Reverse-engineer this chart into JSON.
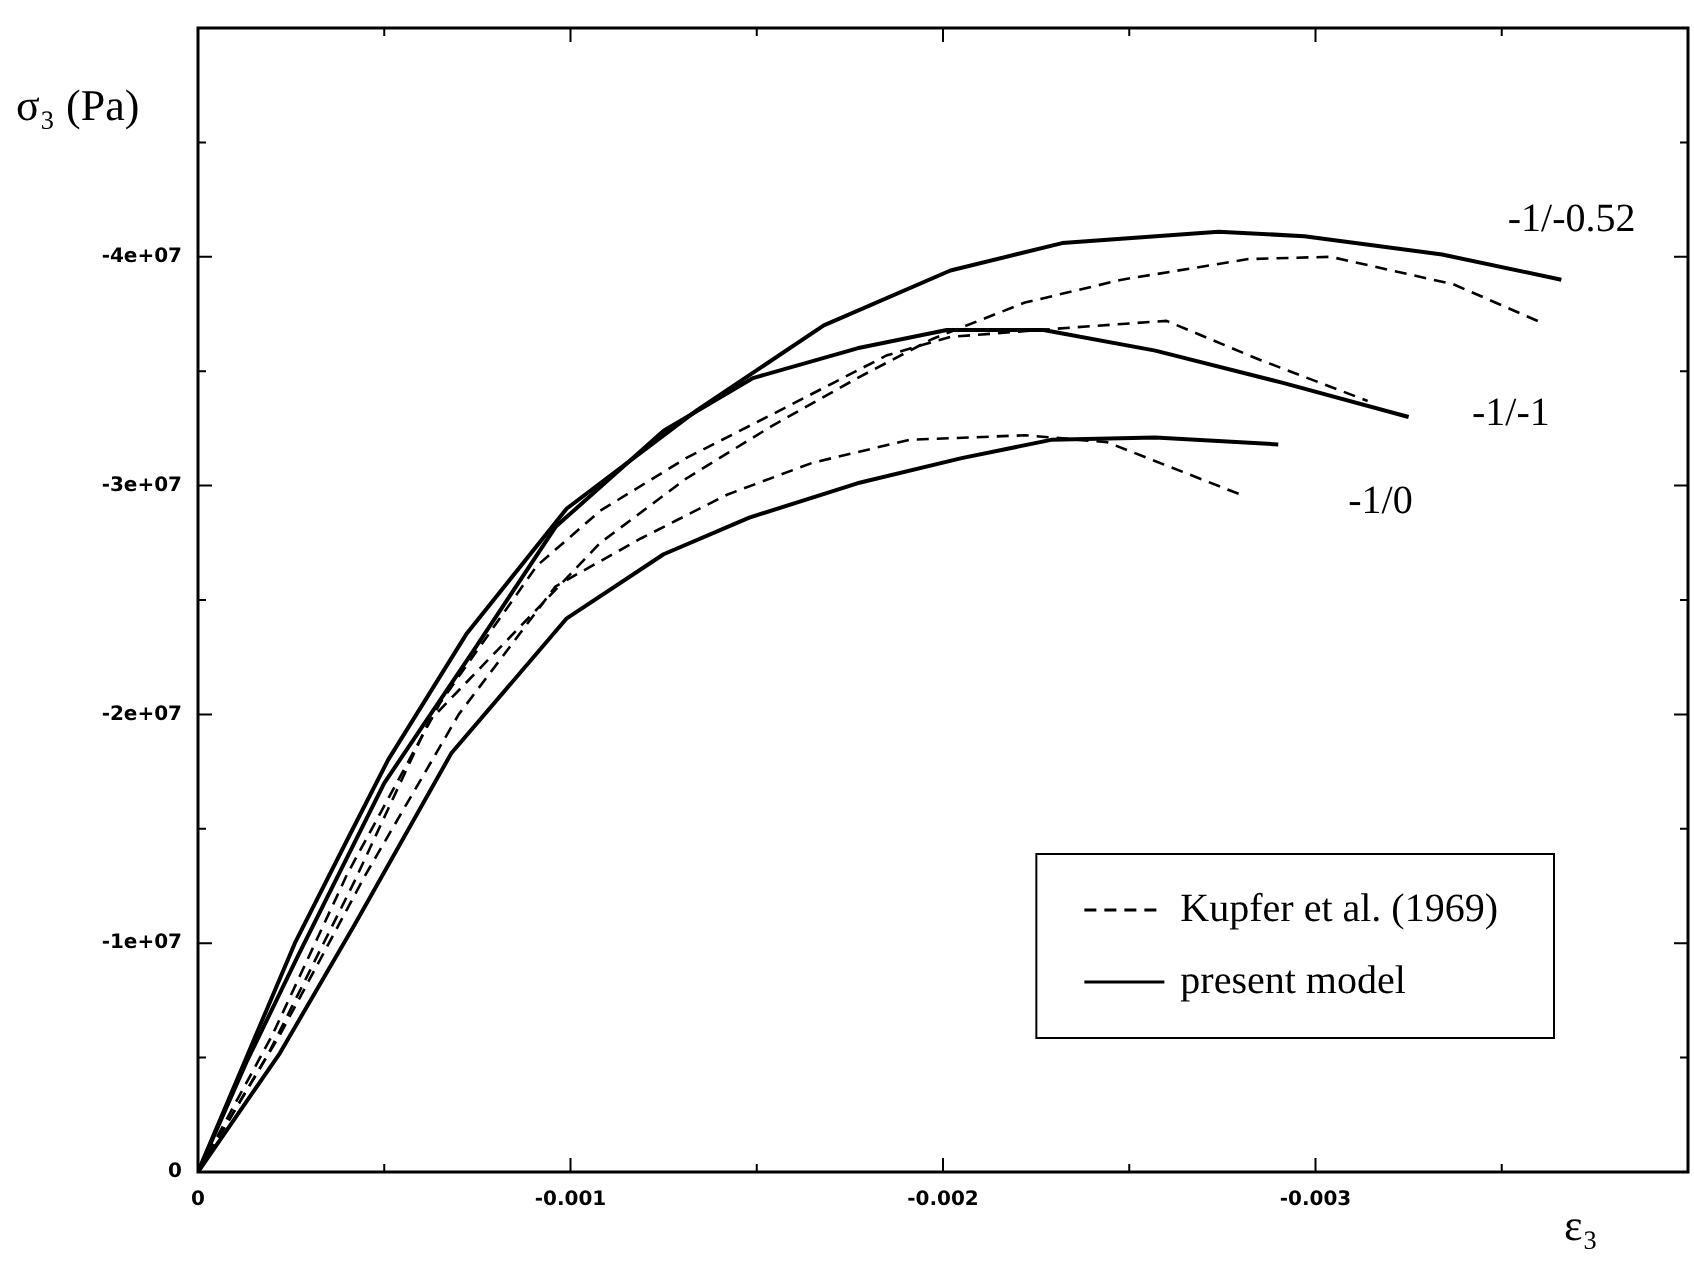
{
  "chart_data": {
    "type": "line",
    "xlabel": "ε₃",
    "ylabel": "σ₃ (Pa)",
    "xlim": [
      0,
      -0.004
    ],
    "ylim": [
      0,
      -50000000
    ],
    "xticks": [
      0,
      {
        "value": -0.0005,
        "label": null
      },
      -0.001,
      {
        "value": -0.0015,
        "label": null
      },
      -0.002,
      {
        "value": -0.0025,
        "label": null
      },
      -0.003,
      {
        "value": -0.0035,
        "label": null
      }
    ],
    "yticks": [
      0,
      {
        "value": -5000000,
        "label": null
      },
      {
        "value": -10000000,
        "label": "-1e+07"
      },
      {
        "value": -15000000,
        "label": null
      },
      {
        "value": -20000000,
        "label": "-2e+07"
      },
      {
        "value": -25000000,
        "label": null
      },
      {
        "value": -30000000,
        "label": "-3e+07"
      },
      {
        "value": -35000000,
        "label": null
      },
      {
        "value": -40000000,
        "label": "-4e+07"
      },
      {
        "value": -45000000,
        "label": null
      }
    ],
    "legend": "bottom right",
    "marker": "none",
    "series": [
      {
        "name": "Kupfer et al. (1969)",
        "color": "#000000",
        "line_style": "dashed",
        "x": [
          0,
          -0.00019,
          -0.00042,
          -0.00062,
          -0.00091,
          -0.00108,
          -0.00131,
          -0.00154,
          -0.00177,
          -0.00197,
          -0.00222,
          -0.00248,
          -0.00282,
          -0.00304,
          -0.00337,
          -0.00361
        ],
        "values": [
          0,
          -5200000,
          -12700000,
          -19700000,
          -24600000,
          -27500000,
          -30300000,
          -32600000,
          -34700000,
          -36400000,
          -38000000,
          -39000000,
          -39900000,
          -40000000,
          -38800000,
          -37100000
        ]
      },
      {
        "color": "#000000",
        "line_style": "dashed",
        "x": [
          0,
          -0.0002,
          -0.0004,
          -0.00065,
          -0.00091,
          -0.00108,
          -0.00131,
          -0.00154,
          -0.00185,
          -0.00202,
          -0.00234,
          -0.0026,
          -0.00285,
          -0.00314
        ],
        "values": [
          0,
          -6000000,
          -13000000,
          -20500000,
          -26500000,
          -28900000,
          -31200000,
          -33100000,
          -35700000,
          -36500000,
          -36900000,
          -37200000,
          -35500000,
          -33700000
        ]
      },
      {
        "color": "#000000",
        "line_style": "dashed",
        "x": [
          0,
          -0.00022,
          -0.00045,
          -0.0007,
          -0.00096,
          -0.00119,
          -0.00142,
          -0.00165,
          -0.00191,
          -0.00222,
          -0.00244,
          -0.0028
        ],
        "values": [
          0,
          -6000000,
          -13000000,
          -20000000,
          -25600000,
          -27700000,
          -29600000,
          -31000000,
          -32000000,
          -32200000,
          -31900000,
          -29600000
        ]
      },
      {
        "name": "present model",
        "color": "#000000",
        "line_style": "solid",
        "x": [
          0,
          -0.00013,
          -0.00026,
          -0.0004,
          -0.00051,
          -0.00072,
          -0.00099,
          -0.00134,
          -0.00168,
          -0.00202,
          -0.00232,
          -0.00274,
          -0.00297,
          -0.00334,
          -0.00366
        ],
        "values": [
          0,
          -5000000,
          -10000000,
          -14500000,
          -18000000,
          -23500000,
          -29000000,
          -33300000,
          -37000000,
          -39400000,
          -40600000,
          -41100000,
          -40900000,
          -40100000,
          -39000000
        ]
      },
      {
        "color": "#000000",
        "line_style": "solid",
        "x": [
          0,
          -0.00013,
          -0.00027,
          -0.0005,
          -0.00074,
          -0.00096,
          -0.00125,
          -0.00149,
          -0.00177,
          -0.00201,
          -0.00227,
          -0.00257,
          -0.00291,
          -0.00325
        ],
        "values": [
          0,
          -4800000,
          -9500000,
          -17000000,
          -22800000,
          -28200000,
          -32400000,
          -34700000,
          -36000000,
          -36800000,
          -36800000,
          -35900000,
          -34500000,
          -33000000
        ]
      },
      {
        "color": "#000000",
        "line_style": "solid",
        "x": [
          0,
          -0.00022,
          -0.00042,
          -0.00068,
          -0.00099,
          -0.00125,
          -0.00148,
          -0.00177,
          -0.00205,
          -0.00229,
          -0.00257,
          -0.0029
        ],
        "values": [
          0,
          -5200000,
          -10800000,
          -18300000,
          -24200000,
          -27000000,
          -28600000,
          -30100000,
          -31200000,
          -32000000,
          -32100000,
          -31800000
        ]
      }
    ],
    "annotations": [
      "-1/-0.52",
      "-1/-1",
      "-1/0"
    ]
  }
}
